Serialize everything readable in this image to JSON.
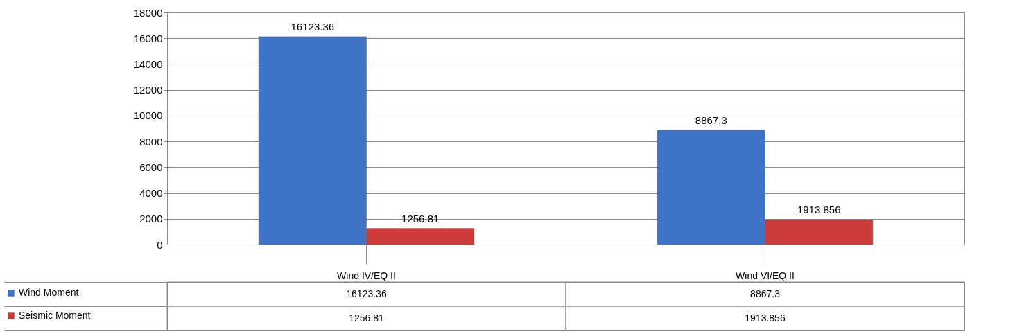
{
  "chart_data": {
    "type": "bar",
    "categories": [
      "Wind IV/EQ II",
      "Wind VI/EQ II"
    ],
    "series": [
      {
        "name": "Wind Moment",
        "color": "#3f74c9",
        "values": [
          16123.36,
          8867.3
        ],
        "value_labels": [
          "16123.36",
          "8867.3"
        ]
      },
      {
        "name": "Seismic Moment",
        "color": "#cc3a3a",
        "values": [
          1256.81,
          1913.856
        ],
        "value_labels": [
          "1256.81",
          "1913.856"
        ]
      }
    ],
    "ylim": [
      0,
      18000
    ],
    "yticks": [
      0,
      2000,
      4000,
      6000,
      8000,
      10000,
      12000,
      14000,
      16000,
      18000
    ],
    "grid": "y",
    "data_labels": true,
    "legend": "bottom"
  }
}
